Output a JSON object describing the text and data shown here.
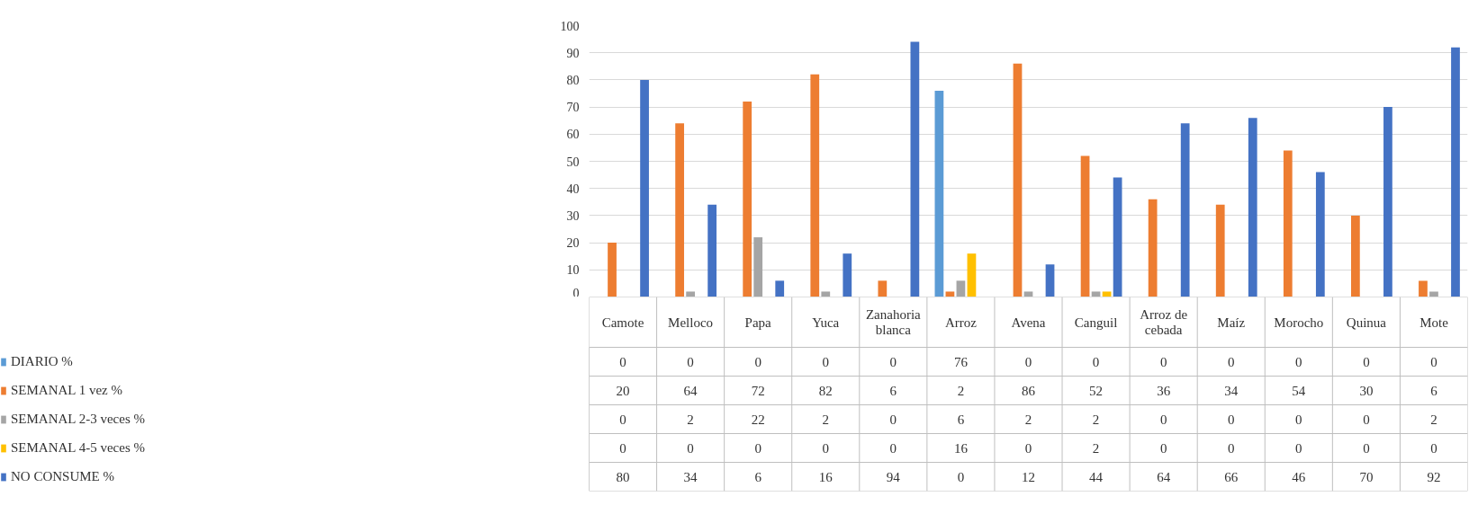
{
  "chart_data": {
    "type": "bar",
    "categories": [
      "Camote",
      "Melloco",
      "Papa",
      "Yuca",
      "Zanahoria blanca",
      "Arroz",
      "Avena",
      "Canguil",
      "Arroz de cebada",
      "Maíz",
      "Morocho",
      "Quinua",
      "Mote"
    ],
    "series": [
      {
        "name": "DIARIO %",
        "color": "#5b9bd5",
        "values": [
          0,
          0,
          0,
          0,
          0,
          76,
          0,
          0,
          0,
          0,
          0,
          0,
          0
        ]
      },
      {
        "name": "SEMANAL 1 vez %",
        "color": "#ed7d31",
        "values": [
          20,
          64,
          72,
          82,
          6,
          2,
          86,
          52,
          36,
          34,
          54,
          30,
          6
        ]
      },
      {
        "name": "SEMANAL 2-3 veces %",
        "color": "#a5a5a5",
        "values": [
          0,
          2,
          22,
          2,
          0,
          6,
          2,
          2,
          0,
          0,
          0,
          0,
          2
        ]
      },
      {
        "name": "SEMANAL 4-5 veces %",
        "color": "#ffc000",
        "values": [
          0,
          0,
          0,
          0,
          0,
          16,
          0,
          2,
          0,
          0,
          0,
          0,
          0
        ]
      },
      {
        "name": "NO CONSUME %",
        "color": "#4472c4",
        "values": [
          80,
          34,
          6,
          16,
          94,
          0,
          12,
          44,
          64,
          66,
          46,
          70,
          92
        ]
      }
    ],
    "ylim": [
      0,
      100
    ],
    "yticks": [
      0,
      10,
      20,
      30,
      40,
      50,
      60,
      70,
      80,
      90,
      100
    ],
    "grid": "y",
    "legend": "bottom left",
    "data_labels": true
  }
}
